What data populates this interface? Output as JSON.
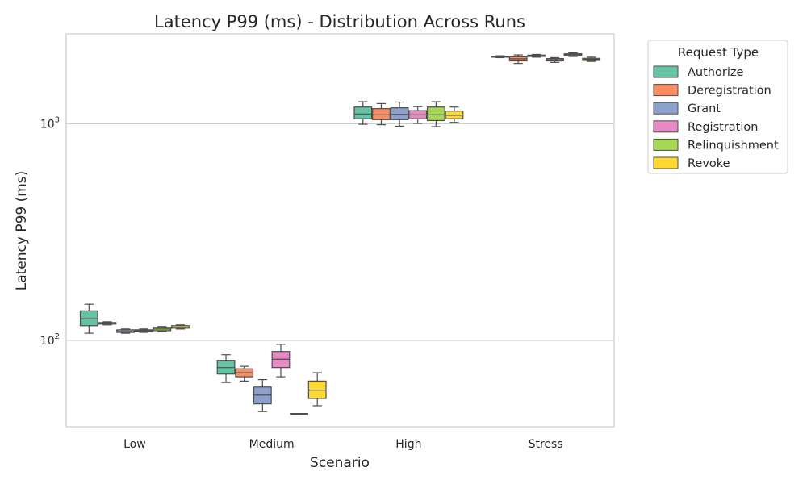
{
  "chart_data": {
    "type": "boxplot",
    "title": "Latency P99 (ms) - Distribution Across Runs",
    "xlabel": "Scenario",
    "ylabel": "Latency P99 (ms)",
    "yscale": "log",
    "ylim": [
      40,
      2600
    ],
    "yticks": [
      {
        "value": 100,
        "base": "10",
        "exp": "2"
      },
      {
        "value": 1000,
        "base": "10",
        "exp": "3"
      }
    ],
    "grid": "horizontal",
    "legend": {
      "title": "Request Type",
      "position": "outside-right"
    },
    "categories": [
      "Low",
      "Medium",
      "High",
      "Stress"
    ],
    "series": [
      {
        "name": "Authorize",
        "color": "#66c2a5",
        "boxes": [
          {
            "min": 108,
            "q1": 117,
            "median": 126,
            "q3": 137,
            "max": 147
          },
          {
            "min": 64,
            "q1": 70,
            "median": 75,
            "q3": 81,
            "max": 86
          },
          {
            "min": 995,
            "q1": 1055,
            "median": 1110,
            "q3": 1195,
            "max": 1265
          },
          {
            "min": 2020,
            "q1": 2030,
            "median": 2040,
            "q3": 2050,
            "max": 2060
          }
        ]
      },
      {
        "name": "Deregistration",
        "color": "#fc8d62",
        "boxes": [
          {
            "min": 118,
            "q1": 119,
            "median": 120,
            "q3": 121,
            "max": 122
          },
          {
            "min": 65,
            "q1": 68,
            "median": 71,
            "q3": 74,
            "max": 76
          },
          {
            "min": 990,
            "q1": 1045,
            "median": 1100,
            "q3": 1175,
            "max": 1240
          },
          {
            "min": 1900,
            "q1": 1950,
            "median": 1995,
            "q3": 2040,
            "max": 2080
          }
        ]
      },
      {
        "name": "Grant",
        "color": "#8da0cb",
        "boxes": [
          {
            "min": 108,
            "q1": 109,
            "median": 110,
            "q3": 112,
            "max": 113
          },
          {
            "min": 47,
            "q1": 51,
            "median": 56,
            "q3": 61,
            "max": 66
          },
          {
            "min": 975,
            "q1": 1045,
            "median": 1105,
            "q3": 1185,
            "max": 1260
          },
          {
            "min": 2030,
            "q1": 2045,
            "median": 2060,
            "q3": 2075,
            "max": 2090
          }
        ]
      },
      {
        "name": "Registration",
        "color": "#e78ac3",
        "boxes": [
          {
            "min": 109,
            "q1": 110,
            "median": 111,
            "q3": 112,
            "max": 113
          },
          {
            "min": 68,
            "q1": 75,
            "median": 82,
            "q3": 89,
            "max": 96
          },
          {
            "min": 1005,
            "q1": 1055,
            "median": 1100,
            "q3": 1150,
            "max": 1200
          },
          {
            "min": 1920,
            "q1": 1950,
            "median": 1975,
            "q3": 2000,
            "max": 2020
          }
        ]
      },
      {
        "name": "Relinquishment",
        "color": "#a6d854",
        "boxes": [
          {
            "min": 110,
            "q1": 111,
            "median": 113,
            "q3": 115,
            "max": 116
          },
          {
            "min": 46,
            "q1": 46,
            "median": 46,
            "q3": 46,
            "max": 46
          },
          {
            "min": 970,
            "q1": 1035,
            "median": 1100,
            "q3": 1195,
            "max": 1265
          },
          {
            "min": 2045,
            "q1": 2065,
            "median": 2085,
            "q3": 2105,
            "max": 2125
          }
        ]
      },
      {
        "name": "Revoke",
        "color": "#ffd92f",
        "boxes": [
          {
            "min": 113,
            "q1": 114,
            "median": 115,
            "q3": 117,
            "max": 118
          },
          {
            "min": 50,
            "q1": 54,
            "median": 59,
            "q3": 65,
            "max": 71
          },
          {
            "min": 1015,
            "q1": 1055,
            "median": 1095,
            "q3": 1145,
            "max": 1195
          },
          {
            "min": 1940,
            "q1": 1960,
            "median": 1985,
            "q3": 2005,
            "max": 2030
          }
        ]
      }
    ]
  }
}
